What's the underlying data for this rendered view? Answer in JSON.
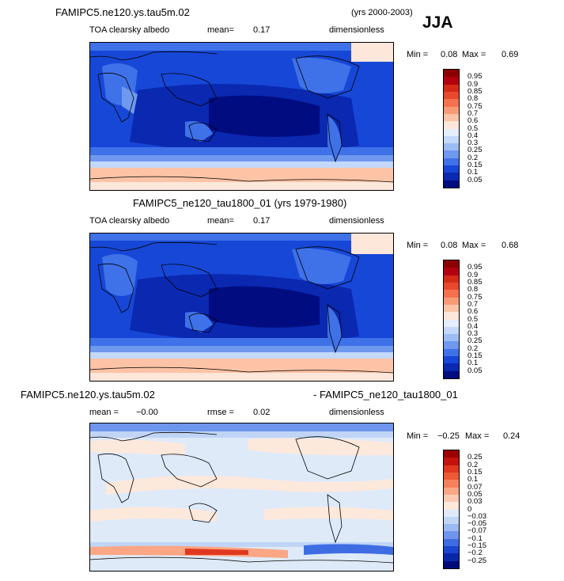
{
  "header": {
    "season": "JJA",
    "years_top": "(yrs 2000-2003)"
  },
  "panels": [
    {
      "title": "FAMIPC5.ne120.ys.tau5m.02",
      "variable": "TOA clearsky albedo",
      "mean_label": "mean=",
      "mean_value": "0.17",
      "units": "dimensionless",
      "min_label": "Min =",
      "min_value": "0.08",
      "max_label": "Max =",
      "max_value": "0.69",
      "colorbar_labels": [
        "0.95",
        "0.9",
        "0.85",
        "0.8",
        "0.75",
        "0.7",
        "0.6",
        "0.5",
        "0.4",
        "0.3",
        "0.25",
        "0.2",
        "0.15",
        "0.1",
        "0.05"
      ],
      "colorbar_colors": [
        "#8b0000",
        "#b3000f",
        "#d42a18",
        "#e8492b",
        "#f4714e",
        "#f99a76",
        "#fcc3a6",
        "#fde6da",
        "#e4eefc",
        "#c3d8fa",
        "#9cbcf5",
        "#6f99ef",
        "#3f71e8",
        "#1747d6",
        "#0a28b0",
        "#000c80"
      ]
    },
    {
      "title": "FAMIPC5_ne120_tau1800_01 (yrs 1979-1980)",
      "variable": "TOA clearsky albedo",
      "mean_label": "mean=",
      "mean_value": "0.17",
      "units": "dimensionless",
      "min_label": "Min =",
      "min_value": "0.08",
      "max_label": "Max =",
      "max_value": "0.68",
      "colorbar_labels": [
        "0.95",
        "0.9",
        "0.85",
        "0.8",
        "0.75",
        "0.7",
        "0.6",
        "0.5",
        "0.4",
        "0.3",
        "0.25",
        "0.2",
        "0.15",
        "0.1",
        "0.05"
      ],
      "colorbar_colors": [
        "#8b0000",
        "#b3000f",
        "#d42a18",
        "#e8492b",
        "#f4714e",
        "#f99a76",
        "#fcc3a6",
        "#fde6da",
        "#e4eefc",
        "#c3d8fa",
        "#9cbcf5",
        "#6f99ef",
        "#3f71e8",
        "#1747d6",
        "#0a28b0",
        "#000c80"
      ]
    },
    {
      "title_left": "FAMIPC5.ne120.ys.tau5m.02",
      "title_right": "- FAMIPC5_ne120_tau1800_01",
      "mean_label": "mean =",
      "mean_value": "−0.00",
      "rmse_label": "rmse =",
      "rmse_value": "0.02",
      "units": "dimensionless",
      "min_label": "Min =",
      "min_value": "−0.25",
      "max_label": "Max =",
      "max_value": "0.24",
      "colorbar_labels": [
        "0.25",
        "0.2",
        "0.15",
        "0.1",
        "0.07",
        "0.05",
        "0.03",
        "0",
        "−0.03",
        "−0.05",
        "−0.07",
        "−0.1",
        "−0.15",
        "−0.2",
        "−0.25"
      ],
      "colorbar_colors": [
        "#9b0000",
        "#c4130c",
        "#e0381e",
        "#ef5a36",
        "#f7805c",
        "#fba685",
        "#fdcbb3",
        "#fde8dc",
        "#dfeaf8",
        "#c0d5f6",
        "#9bbaf2",
        "#6f96ec",
        "#3e6de3",
        "#1a45cf",
        "#0a27a8",
        "#000a78"
      ]
    }
  ]
}
